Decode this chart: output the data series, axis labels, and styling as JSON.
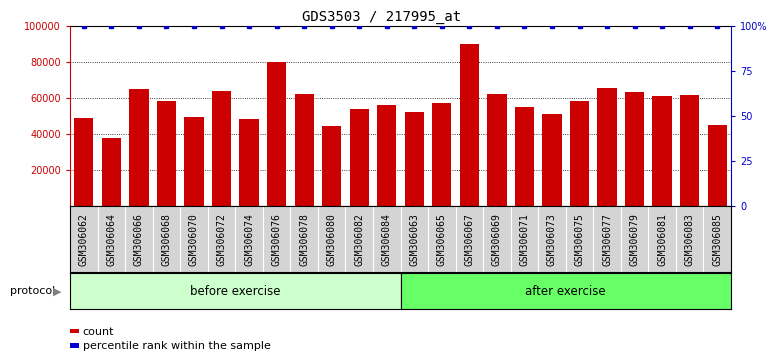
{
  "title": "GDS3503 / 217995_at",
  "categories": [
    "GSM306062",
    "GSM306064",
    "GSM306066",
    "GSM306068",
    "GSM306070",
    "GSM306072",
    "GSM306074",
    "GSM306076",
    "GSM306078",
    "GSM306080",
    "GSM306082",
    "GSM306084",
    "GSM306063",
    "GSM306065",
    "GSM306067",
    "GSM306069",
    "GSM306071",
    "GSM306073",
    "GSM306075",
    "GSM306077",
    "GSM306079",
    "GSM306081",
    "GSM306083",
    "GSM306085"
  ],
  "values": [
    49000,
    37500,
    65000,
    58500,
    49500,
    64000,
    48500,
    80000,
    62000,
    44500,
    54000,
    56000,
    52000,
    57000,
    90000,
    62000,
    55000,
    51000,
    58500,
    65500,
    63000,
    61000,
    61500,
    45000
  ],
  "percentile_values": [
    100,
    100,
    100,
    100,
    100,
    100,
    100,
    100,
    100,
    100,
    100,
    100,
    100,
    100,
    100,
    100,
    100,
    100,
    100,
    100,
    100,
    100,
    100,
    100
  ],
  "bar_color": "#CC0000",
  "percentile_color": "#0000CC",
  "ylim": [
    0,
    100000
  ],
  "yticks": [
    20000,
    40000,
    60000,
    80000,
    100000
  ],
  "ytick_labels": [
    "20000",
    "40000",
    "60000",
    "80000",
    "100000"
  ],
  "right_yticks": [
    0,
    25,
    50,
    75,
    100
  ],
  "right_ytick_labels": [
    "0",
    "25",
    "50",
    "75",
    "100%"
  ],
  "group1_label": "before exercise",
  "group2_label": "after exercise",
  "group1_color": "#CCFFCC",
  "group2_color": "#66FF66",
  "group1_count": 12,
  "group2_count": 12,
  "protocol_label": "protocol",
  "legend_count_label": "count",
  "legend_percentile_label": "percentile rank within the sample",
  "title_fontsize": 10,
  "tick_fontsize": 7,
  "label_fontsize": 8.5,
  "xtick_bg": "#D4D4D4",
  "plot_bg": "#FFFFFF"
}
